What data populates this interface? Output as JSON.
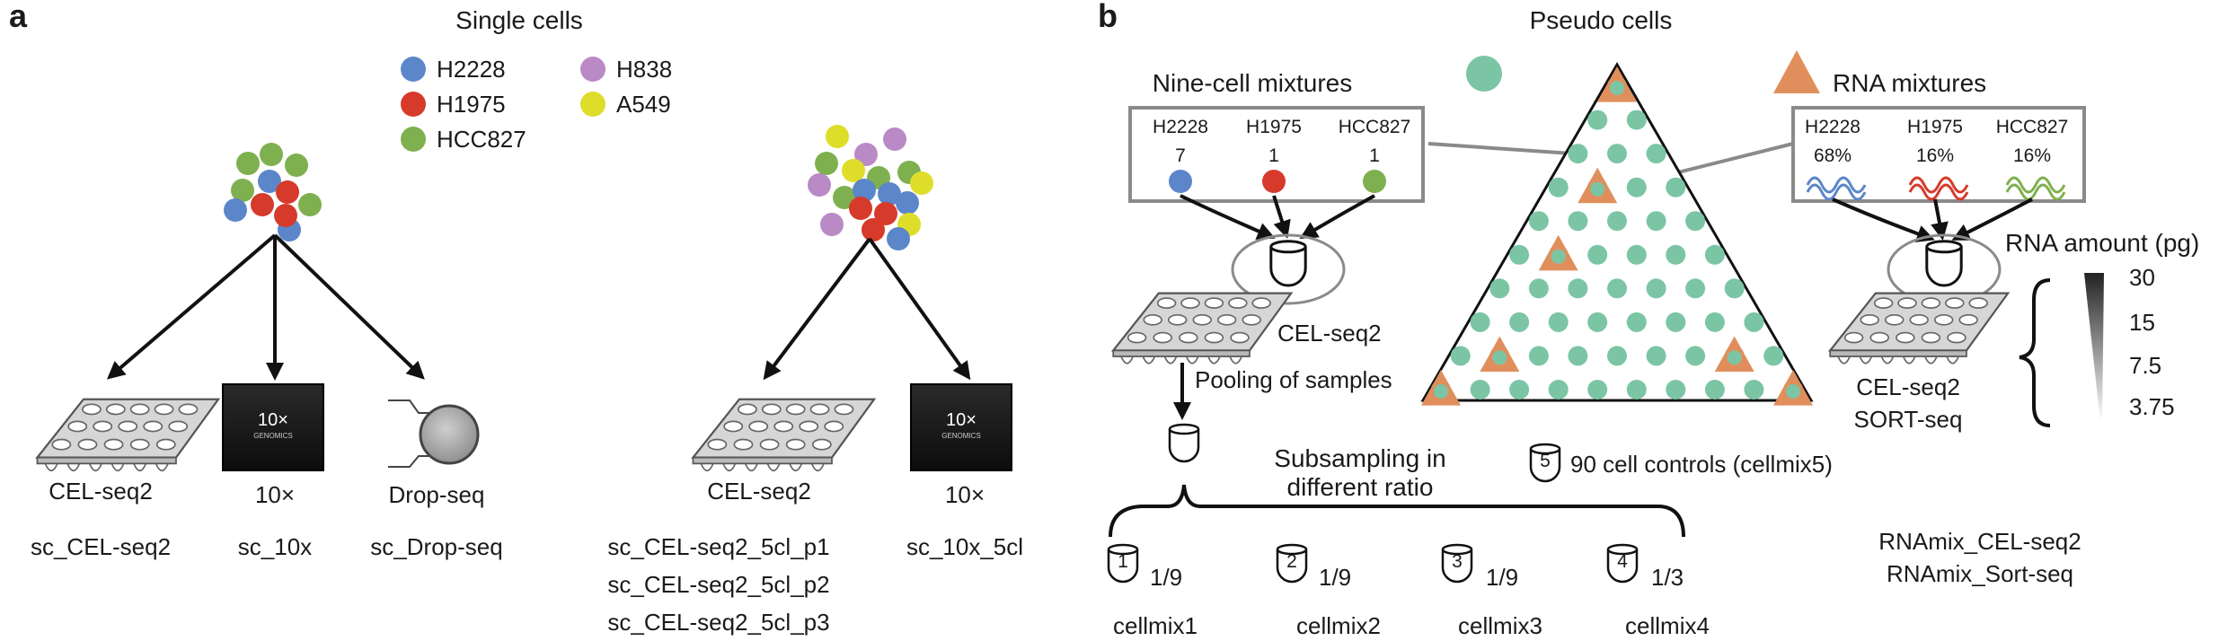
{
  "panel_a": {
    "label": "a",
    "title": "Single cells",
    "legend": [
      {
        "name": "H2228",
        "color": "#5b86c9"
      },
      {
        "name": "H1975",
        "color": "#d63a2a"
      },
      {
        "name": "HCC827",
        "color": "#7fb04f"
      },
      {
        "name": "H838",
        "color": "#b98ac6"
      },
      {
        "name": "A549",
        "color": "#dedd2a"
      }
    ],
    "platforms_3cl": [
      {
        "name": "CEL-seq2",
        "dataset": "sc_CEL-seq2",
        "icon": "plate-icon"
      },
      {
        "name": "10×",
        "dataset": "sc_10x",
        "icon": "10x-chromium-icon",
        "logo": "10×",
        "logo_sub": "GENOMICS"
      },
      {
        "name": "Drop-seq",
        "dataset": "sc_Drop-seq",
        "icon": "dropseq-icon"
      }
    ],
    "platforms_5cl": [
      {
        "name": "CEL-seq2",
        "datasets": [
          "sc_CEL-seq2_5cl_p1",
          "sc_CEL-seq2_5cl_p2",
          "sc_CEL-seq2_5cl_p3"
        ],
        "icon": "plate-icon"
      },
      {
        "name": "10×",
        "dataset": "sc_10x_5cl",
        "icon": "10x-chromium-icon",
        "logo": "10×",
        "logo_sub": "GENOMICS"
      }
    ]
  },
  "panel_b": {
    "label": "b",
    "title": "Pseudo cells",
    "nine_cell": {
      "title": "Nine-cell mixtures",
      "lines": [
        {
          "name": "H2228",
          "count": "7"
        },
        {
          "name": "H1975",
          "count": "1"
        },
        {
          "name": "HCC827",
          "count": "1"
        }
      ],
      "protocol": "CEL-seq2",
      "pooling": "Pooling of samples",
      "subsampling": [
        "Subsampling in",
        "different ratio"
      ],
      "mixes": [
        {
          "num": "1",
          "ratio": "1/9",
          "name": "cellmix1"
        },
        {
          "num": "2",
          "ratio": "1/9",
          "name": "cellmix2"
        },
        {
          "num": "3",
          "ratio": "1/9",
          "name": "cellmix3"
        },
        {
          "num": "4",
          "ratio": "1/3",
          "name": "cellmix4"
        }
      ],
      "controls": {
        "num": "5",
        "text": "90 cell controls (cellmix5)"
      }
    },
    "rna_mix": {
      "title": "RNA mixtures",
      "lines": [
        {
          "name": "H2228",
          "pct": "68%"
        },
        {
          "name": "H1975",
          "pct": "16%"
        },
        {
          "name": "HCC827",
          "pct": "16%"
        }
      ],
      "protocols": [
        "CEL-seq2",
        "SORT-seq"
      ],
      "amount_title": "RNA amount (pg)",
      "amounts": [
        "30",
        "15",
        "7.5",
        "3.75"
      ],
      "datasets": [
        "RNAmix_CEL-seq2",
        "RNAmix_Sort-seq"
      ]
    },
    "colors": {
      "green": "#7bc5a5",
      "orange": "#e08f5c"
    }
  }
}
